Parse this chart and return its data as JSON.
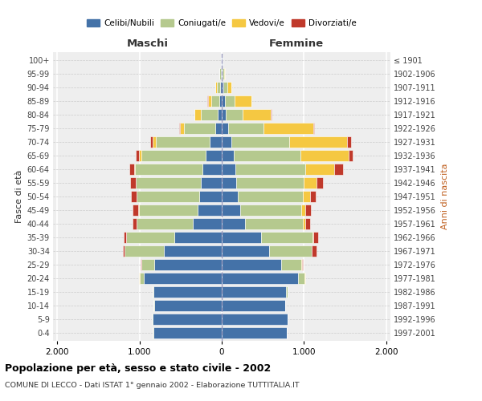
{
  "age_groups": [
    "0-4",
    "5-9",
    "10-14",
    "15-19",
    "20-24",
    "25-29",
    "30-34",
    "35-39",
    "40-44",
    "45-49",
    "50-54",
    "55-59",
    "60-64",
    "65-69",
    "70-74",
    "75-79",
    "80-84",
    "85-89",
    "90-94",
    "95-99",
    "100+"
  ],
  "birth_years": [
    "1997-2001",
    "1992-1996",
    "1987-1991",
    "1982-1986",
    "1977-1981",
    "1972-1976",
    "1967-1971",
    "1962-1966",
    "1957-1961",
    "1952-1956",
    "1947-1951",
    "1942-1946",
    "1937-1941",
    "1932-1936",
    "1927-1931",
    "1922-1926",
    "1917-1921",
    "1912-1916",
    "1907-1911",
    "1902-1906",
    "≤ 1901"
  ],
  "maschi_celibi": [
    830,
    840,
    820,
    830,
    950,
    820,
    700,
    580,
    350,
    290,
    270,
    250,
    230,
    200,
    150,
    80,
    50,
    30,
    20,
    10,
    5
  ],
  "maschi_coniugati": [
    5,
    5,
    5,
    10,
    50,
    160,
    480,
    580,
    680,
    720,
    760,
    790,
    820,
    780,
    650,
    380,
    200,
    100,
    40,
    15,
    5
  ],
  "maschi_vedovi": [
    0,
    0,
    0,
    0,
    1,
    1,
    1,
    2,
    3,
    5,
    5,
    5,
    10,
    30,
    40,
    50,
    80,
    40,
    15,
    5,
    2
  ],
  "maschi_divorziati": [
    0,
    0,
    1,
    2,
    5,
    5,
    20,
    30,
    50,
    65,
    70,
    70,
    60,
    30,
    30,
    5,
    5,
    2,
    1,
    0,
    0
  ],
  "femmine_nubili": [
    790,
    800,
    770,
    780,
    930,
    720,
    580,
    480,
    280,
    220,
    200,
    180,
    170,
    150,
    120,
    80,
    50,
    40,
    20,
    10,
    5
  ],
  "femmine_coniugate": [
    5,
    5,
    5,
    20,
    80,
    250,
    510,
    620,
    710,
    750,
    790,
    820,
    850,
    810,
    700,
    430,
    200,
    120,
    50,
    15,
    5
  ],
  "femmine_vedove": [
    0,
    0,
    0,
    0,
    1,
    2,
    5,
    10,
    30,
    50,
    80,
    150,
    350,
    580,
    700,
    600,
    350,
    200,
    50,
    10,
    3
  ],
  "femmine_divorziate": [
    0,
    0,
    0,
    2,
    5,
    10,
    60,
    60,
    50,
    60,
    70,
    80,
    100,
    50,
    50,
    10,
    10,
    5,
    2,
    0,
    0
  ],
  "colors_celibi": "#4472a8",
  "colors_coniugati": "#b5c98e",
  "colors_vedovi": "#f5c842",
  "colors_divorziati": "#c0392b",
  "legend_labels": [
    "Celibi/Nubili",
    "Coniugati/e",
    "Vedovi/e",
    "Divorziati/e"
  ],
  "title": "Popolazione per età, sesso e stato civile - 2002",
  "subtitle": "COMUNE DI LECCO - Dati ISTAT 1° gennaio 2002 - Elaborazione TUTTITALIA.IT",
  "label_maschi": "Maschi",
  "label_femmine": "Femmine",
  "ylabel_left": "Fasce di età",
  "ylabel_right": "Anni di nascita",
  "xlim": 2050,
  "xticks": [
    -2000,
    -1000,
    0,
    1000,
    2000
  ],
  "xticklabels": [
    "2.000",
    "1.000",
    "0",
    "1.000",
    "2.000"
  ],
  "bg_color": "#eeeeee"
}
